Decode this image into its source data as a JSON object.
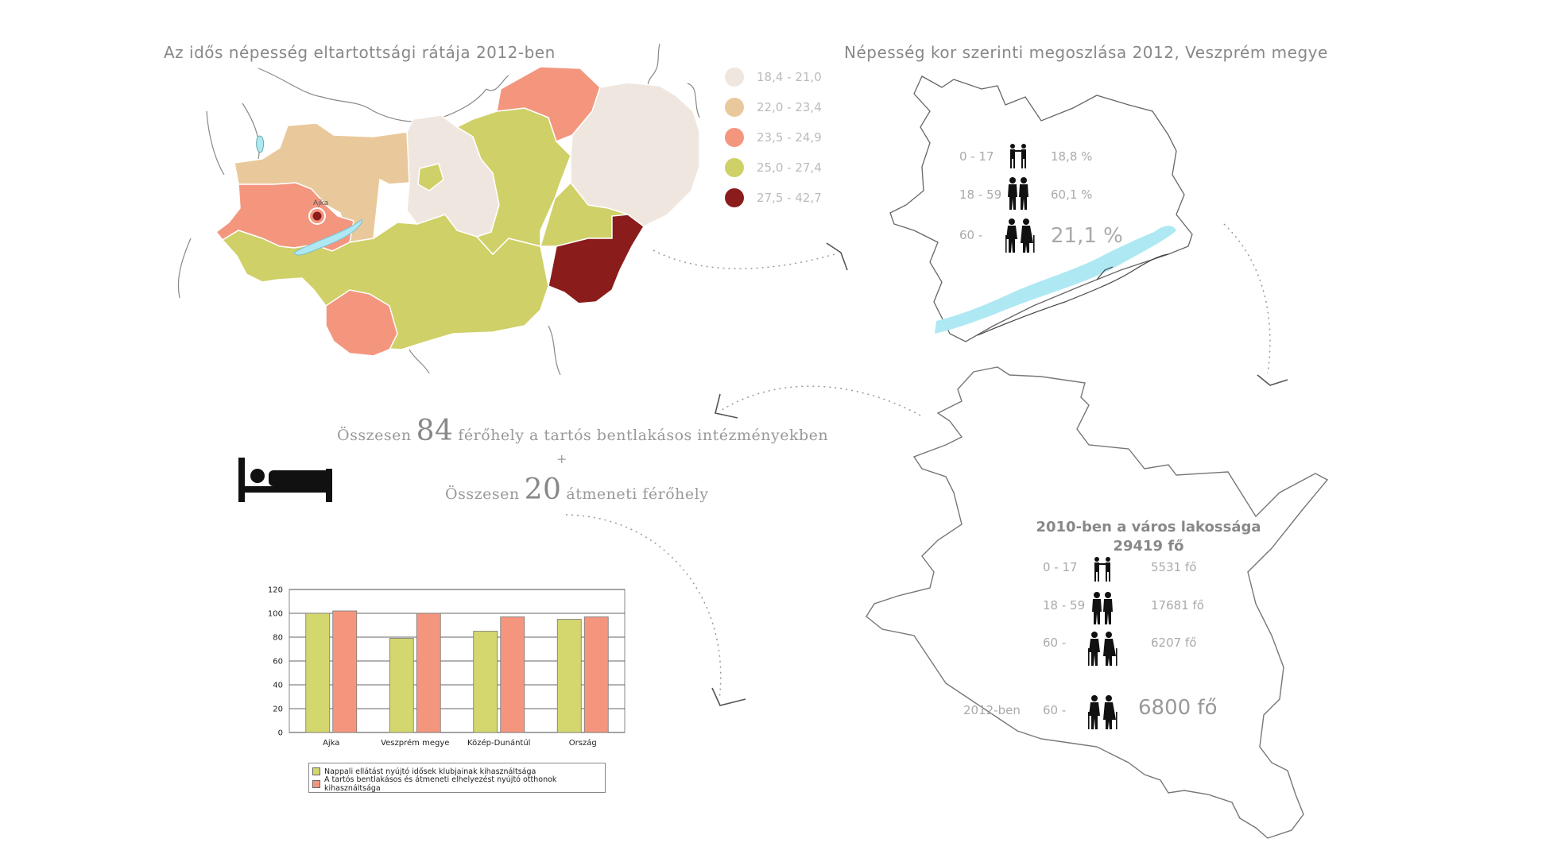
{
  "map_hungary": {
    "title": "Az  idős népesség eltartottsági rátája 2012-ben",
    "city_label": "Ajka",
    "legend": [
      {
        "label": "18,4 - 21,0",
        "color": "#efe7df"
      },
      {
        "label": "22,0 - 23,4",
        "color": "#e9c99c"
      },
      {
        "label": "23,5 - 24,9",
        "color": "#f4967e"
      },
      {
        "label": "25,0 - 27,4",
        "color": "#cfd067"
      },
      {
        "label": "27,5 - 42,7",
        "color": "#8b1c1c"
      }
    ]
  },
  "county_panel": {
    "title": "Népesség kor szerinti megoszlása 2012, Veszprém megye",
    "rows": [
      {
        "age": "0 - 17",
        "value": "18,8 %",
        "icon": "children-icon"
      },
      {
        "age": "18 - 59",
        "value": "60,1 %",
        "icon": "adults-icon"
      },
      {
        "age": "60 -",
        "value": "21,1 %",
        "icon": "elderly-icon"
      }
    ],
    "lake_color": "#aee9f3"
  },
  "capacity": {
    "line1_pre": "Összesen",
    "line1_number": "84",
    "line1_post": "férőhely a tartós bentlakásos intézményekben",
    "plus": "+",
    "line2_pre": "Összesen",
    "line2_number": "20",
    "line2_post": "átmeneti férőhely",
    "icon": "bed-icon"
  },
  "city_panel": {
    "title": "2010-ben a város lakossága",
    "subtitle": "29419 fő",
    "rows": [
      {
        "age": "0 - 17",
        "value": "5531 fő",
        "icon": "children-icon"
      },
      {
        "age": "18 - 59",
        "value": "17681 fő",
        "icon": "adults-icon"
      },
      {
        "age": "60 -",
        "value": "6207 fő",
        "icon": "elderly-icon"
      }
    ],
    "row_2012": {
      "year": "2012-ben",
      "age": "60 -",
      "value": "6800 fő",
      "icon": "elderly-icon"
    }
  },
  "chart_data": {
    "type": "bar",
    "categories": [
      "Ajka",
      "Veszprém megye",
      "Közép-Dunántúl",
      "Ország"
    ],
    "series": [
      {
        "name": "Nappali ellátást nyújtó idősek klubjainak kihasználtsága",
        "values": [
          100,
          79,
          85,
          95
        ],
        "color": "#d4d66e"
      },
      {
        "name": "A tartós bentlakásos és átmeneti elhelyezést nyújtó otthonok kihasználtsága",
        "values": [
          102,
          100,
          97,
          97
        ],
        "color": "#f4967e"
      }
    ],
    "ylim": [
      0,
      120
    ],
    "yticks": [
      "0",
      "20",
      "40",
      "60",
      "80",
      "100",
      "120"
    ],
    "grid": true,
    "legend_position": "bottom"
  }
}
